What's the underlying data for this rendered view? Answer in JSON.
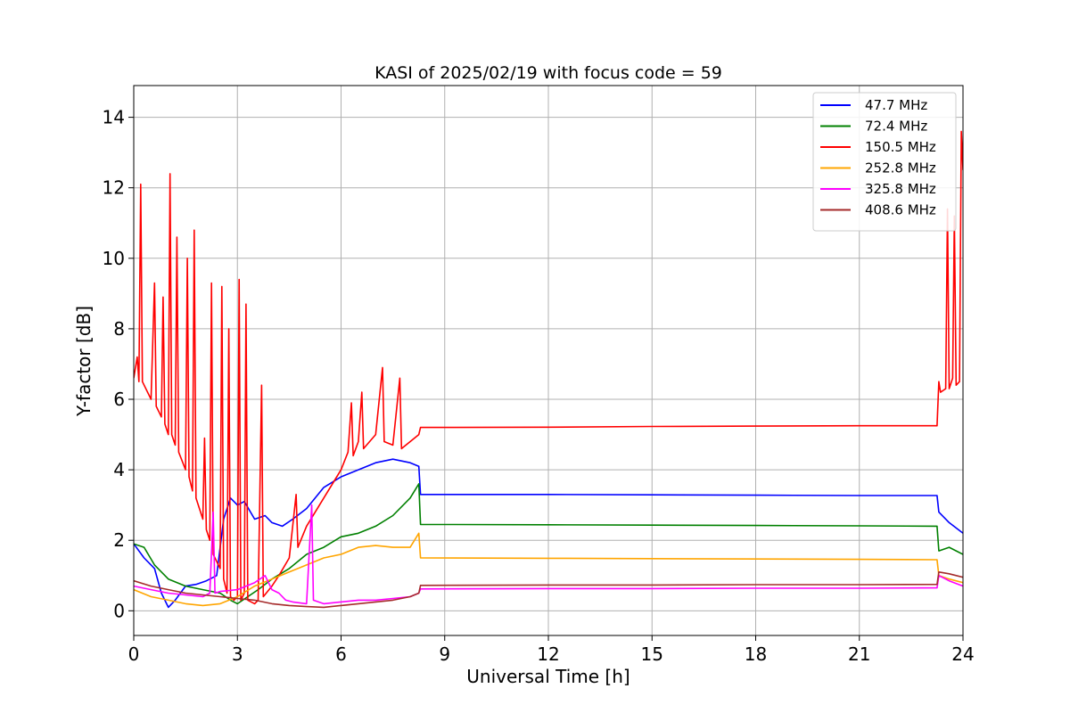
{
  "chart_data": {
    "type": "line",
    "title": "KASI of 2025/02/19 with focus code = 59",
    "xlabel": "Universal Time [h]",
    "ylabel": "Y-factor [dB]",
    "xlim": [
      0,
      24
    ],
    "ylim": [
      -0.7,
      14.9
    ],
    "xticks": [
      0,
      3,
      6,
      9,
      12,
      15,
      18,
      21,
      24
    ],
    "yticks": [
      0,
      2,
      4,
      6,
      8,
      10,
      12,
      14
    ],
    "grid": true,
    "legend_position": "top-right",
    "series": [
      {
        "name": "47.7 MHz",
        "color": "#0000ff",
        "points": [
          [
            0,
            1.9
          ],
          [
            0.3,
            1.5
          ],
          [
            0.6,
            1.2
          ],
          [
            0.8,
            0.5
          ],
          [
            1.0,
            0.1
          ],
          [
            1.2,
            0.3
          ],
          [
            1.5,
            0.7
          ],
          [
            1.8,
            0.75
          ],
          [
            2.1,
            0.85
          ],
          [
            2.4,
            1.0
          ],
          [
            2.6,
            2.6
          ],
          [
            2.8,
            3.2
          ],
          [
            3.0,
            3.0
          ],
          [
            3.2,
            3.1
          ],
          [
            3.5,
            2.6
          ],
          [
            3.8,
            2.7
          ],
          [
            4.0,
            2.5
          ],
          [
            4.3,
            2.4
          ],
          [
            4.6,
            2.6
          ],
          [
            5.0,
            2.9
          ],
          [
            5.5,
            3.5
          ],
          [
            6.0,
            3.8
          ],
          [
            6.5,
            4.0
          ],
          [
            7.0,
            4.2
          ],
          [
            7.5,
            4.3
          ],
          [
            8.0,
            4.2
          ],
          [
            8.25,
            4.1
          ],
          [
            8.3,
            3.3
          ],
          [
            12,
            3.3
          ],
          [
            15,
            3.29
          ],
          [
            18,
            3.28
          ],
          [
            21,
            3.27
          ],
          [
            23.25,
            3.27
          ],
          [
            23.3,
            2.8
          ],
          [
            23.6,
            2.5
          ],
          [
            24,
            2.2
          ]
        ]
      },
      {
        "name": "72.4 MHz",
        "color": "#008000",
        "points": [
          [
            0,
            1.9
          ],
          [
            0.3,
            1.8
          ],
          [
            0.6,
            1.3
          ],
          [
            1.0,
            0.9
          ],
          [
            1.5,
            0.7
          ],
          [
            2.0,
            0.6
          ],
          [
            2.5,
            0.5
          ],
          [
            2.8,
            0.3
          ],
          [
            3.0,
            0.2
          ],
          [
            3.3,
            0.4
          ],
          [
            3.6,
            0.6
          ],
          [
            4.0,
            0.9
          ],
          [
            4.5,
            1.2
          ],
          [
            5.0,
            1.6
          ],
          [
            5.5,
            1.8
          ],
          [
            6.0,
            2.1
          ],
          [
            6.5,
            2.2
          ],
          [
            7.0,
            2.4
          ],
          [
            7.5,
            2.7
          ],
          [
            8.0,
            3.2
          ],
          [
            8.25,
            3.6
          ],
          [
            8.3,
            2.45
          ],
          [
            12,
            2.44
          ],
          [
            15,
            2.43
          ],
          [
            18,
            2.42
          ],
          [
            21,
            2.41
          ],
          [
            23.25,
            2.4
          ],
          [
            23.3,
            1.7
          ],
          [
            23.6,
            1.8
          ],
          [
            24,
            1.6
          ]
        ]
      },
      {
        "name": "150.5 MHz",
        "color": "#ff0000",
        "points": [
          [
            0,
            6.6
          ],
          [
            0.1,
            7.2
          ],
          [
            0.15,
            6.5
          ],
          [
            0.2,
            12.1
          ],
          [
            0.25,
            6.5
          ],
          [
            0.5,
            6.0
          ],
          [
            0.6,
            9.3
          ],
          [
            0.65,
            5.8
          ],
          [
            0.8,
            5.5
          ],
          [
            0.85,
            8.9
          ],
          [
            0.9,
            5.3
          ],
          [
            1.0,
            5.0
          ],
          [
            1.05,
            12.4
          ],
          [
            1.1,
            5.0
          ],
          [
            1.2,
            4.7
          ],
          [
            1.25,
            10.6
          ],
          [
            1.3,
            4.5
          ],
          [
            1.5,
            4.0
          ],
          [
            1.55,
            10.0
          ],
          [
            1.6,
            3.8
          ],
          [
            1.7,
            3.4
          ],
          [
            1.75,
            10.8
          ],
          [
            1.8,
            3.2
          ],
          [
            2.0,
            2.6
          ],
          [
            2.05,
            4.9
          ],
          [
            2.1,
            2.3
          ],
          [
            2.2,
            2.0
          ],
          [
            2.25,
            9.3
          ],
          [
            2.3,
            1.6
          ],
          [
            2.5,
            1.2
          ],
          [
            2.55,
            9.2
          ],
          [
            2.6,
            0.9
          ],
          [
            2.7,
            0.5
          ],
          [
            2.75,
            8.0
          ],
          [
            2.8,
            0.4
          ],
          [
            2.9,
            0.3
          ],
          [
            3.0,
            0.4
          ],
          [
            3.05,
            9.4
          ],
          [
            3.1,
            0.3
          ],
          [
            3.2,
            0.5
          ],
          [
            3.25,
            8.7
          ],
          [
            3.3,
            0.3
          ],
          [
            3.5,
            0.2
          ],
          [
            3.6,
            0.3
          ],
          [
            3.7,
            6.4
          ],
          [
            3.75,
            0.4
          ],
          [
            4.0,
            0.7
          ],
          [
            4.2,
            1.0
          ],
          [
            4.5,
            1.5
          ],
          [
            4.7,
            3.3
          ],
          [
            4.75,
            1.8
          ],
          [
            5.0,
            2.4
          ],
          [
            5.5,
            3.2
          ],
          [
            6.0,
            4.0
          ],
          [
            6.2,
            4.5
          ],
          [
            6.3,
            5.9
          ],
          [
            6.35,
            4.4
          ],
          [
            6.5,
            4.8
          ],
          [
            6.6,
            6.2
          ],
          [
            6.65,
            4.6
          ],
          [
            7.0,
            5.0
          ],
          [
            7.2,
            6.9
          ],
          [
            7.25,
            4.8
          ],
          [
            7.5,
            4.7
          ],
          [
            7.7,
            6.6
          ],
          [
            7.75,
            4.6
          ],
          [
            8.0,
            4.8
          ],
          [
            8.25,
            5.0
          ],
          [
            8.3,
            5.2
          ],
          [
            12,
            5.21
          ],
          [
            15,
            5.23
          ],
          [
            18,
            5.24
          ],
          [
            21,
            5.25
          ],
          [
            23.25,
            5.25
          ],
          [
            23.3,
            6.5
          ],
          [
            23.35,
            6.2
          ],
          [
            23.5,
            6.3
          ],
          [
            23.55,
            11.4
          ],
          [
            23.6,
            6.3
          ],
          [
            23.7,
            6.6
          ],
          [
            23.75,
            11.2
          ],
          [
            23.8,
            6.4
          ],
          [
            23.9,
            6.5
          ],
          [
            23.95,
            13.6
          ],
          [
            24,
            12.5
          ]
        ]
      },
      {
        "name": "252.8 MHz",
        "color": "#ffa500",
        "points": [
          [
            0,
            0.6
          ],
          [
            0.5,
            0.4
          ],
          [
            1.0,
            0.3
          ],
          [
            1.5,
            0.2
          ],
          [
            2.0,
            0.15
          ],
          [
            2.5,
            0.2
          ],
          [
            3.0,
            0.4
          ],
          [
            3.5,
            0.7
          ],
          [
            4.0,
            0.9
          ],
          [
            4.5,
            1.1
          ],
          [
            5.0,
            1.3
          ],
          [
            5.5,
            1.5
          ],
          [
            6.0,
            1.6
          ],
          [
            6.5,
            1.8
          ],
          [
            7.0,
            1.85
          ],
          [
            7.5,
            1.8
          ],
          [
            8.0,
            1.8
          ],
          [
            8.25,
            2.2
          ],
          [
            8.3,
            1.5
          ],
          [
            12,
            1.49
          ],
          [
            15,
            1.48
          ],
          [
            18,
            1.47
          ],
          [
            21,
            1.46
          ],
          [
            23.25,
            1.45
          ],
          [
            23.3,
            1.0
          ],
          [
            23.6,
            0.9
          ],
          [
            24,
            0.8
          ]
        ]
      },
      {
        "name": "325.8 MHz",
        "color": "#ff00ff",
        "points": [
          [
            0,
            0.7
          ],
          [
            0.5,
            0.6
          ],
          [
            1.0,
            0.5
          ],
          [
            1.5,
            0.45
          ],
          [
            2.0,
            0.4
          ],
          [
            2.2,
            0.5
          ],
          [
            2.3,
            2.8
          ],
          [
            2.35,
            0.5
          ],
          [
            2.5,
            0.55
          ],
          [
            3.0,
            0.6
          ],
          [
            3.5,
            0.8
          ],
          [
            3.8,
            1.0
          ],
          [
            4.0,
            0.6
          ],
          [
            4.2,
            0.5
          ],
          [
            4.4,
            0.3
          ],
          [
            4.6,
            0.25
          ],
          [
            5.0,
            0.2
          ],
          [
            5.15,
            3.0
          ],
          [
            5.2,
            0.3
          ],
          [
            5.5,
            0.2
          ],
          [
            6.0,
            0.25
          ],
          [
            6.5,
            0.3
          ],
          [
            7.0,
            0.3
          ],
          [
            7.5,
            0.35
          ],
          [
            8.0,
            0.4
          ],
          [
            8.25,
            0.5
          ],
          [
            8.3,
            0.62
          ],
          [
            12,
            0.63
          ],
          [
            15,
            0.63
          ],
          [
            18,
            0.64
          ],
          [
            21,
            0.64
          ],
          [
            23.25,
            0.65
          ],
          [
            23.3,
            1.0
          ],
          [
            23.6,
            0.85
          ],
          [
            24,
            0.7
          ]
        ]
      },
      {
        "name": "408.6 MHz",
        "color": "#a52a2a",
        "points": [
          [
            0,
            0.85
          ],
          [
            0.5,
            0.7
          ],
          [
            1.0,
            0.6
          ],
          [
            1.5,
            0.5
          ],
          [
            2.0,
            0.45
          ],
          [
            2.5,
            0.4
          ],
          [
            3.0,
            0.35
          ],
          [
            3.5,
            0.3
          ],
          [
            4.0,
            0.2
          ],
          [
            4.5,
            0.15
          ],
          [
            5.0,
            0.12
          ],
          [
            5.5,
            0.1
          ],
          [
            6.0,
            0.15
          ],
          [
            6.5,
            0.2
          ],
          [
            7.0,
            0.25
          ],
          [
            7.5,
            0.3
          ],
          [
            8.0,
            0.4
          ],
          [
            8.25,
            0.5
          ],
          [
            8.3,
            0.72
          ],
          [
            12,
            0.73
          ],
          [
            15,
            0.73
          ],
          [
            18,
            0.74
          ],
          [
            21,
            0.74
          ],
          [
            23.25,
            0.75
          ],
          [
            23.3,
            1.1
          ],
          [
            23.6,
            1.05
          ],
          [
            24,
            0.95
          ]
        ]
      }
    ]
  }
}
